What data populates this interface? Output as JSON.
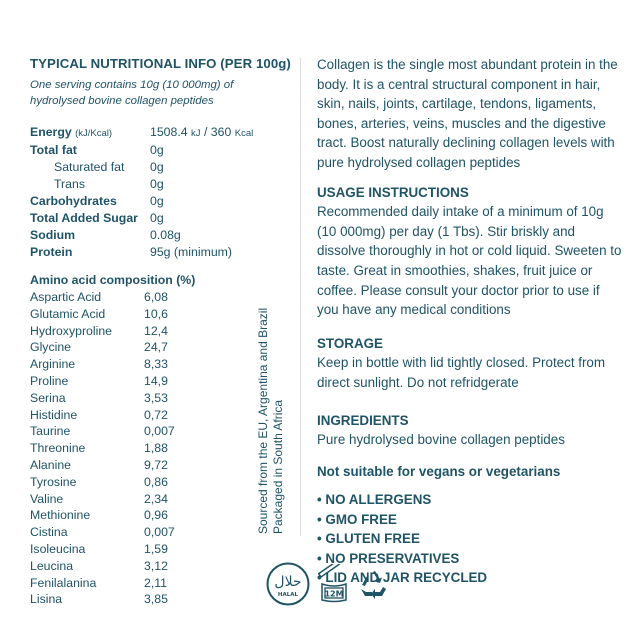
{
  "nutrition": {
    "title": "TYPICAL NUTRITIONAL INFO (PER 100g)",
    "subtitle_line1": "One serving contains 10g (10 000mg) of",
    "subtitle_line2": "hydrolysed bovine collagen peptides",
    "energy": {
      "label": "Energy",
      "unit": "(kJ/Kcal)",
      "kj": "1508.4",
      "kj_unit": "kJ",
      "sep": " / ",
      "kcal": "360",
      "kcal_unit": "Kcal"
    },
    "rows": [
      {
        "label": "Total fat",
        "value": "0g"
      },
      {
        "label": "Saturated fat",
        "value": "0g"
      },
      {
        "label": "Trans",
        "value": "0g"
      },
      {
        "label": "Carbohydrates",
        "value": "0g"
      },
      {
        "label": "Total Added Sugar",
        "value": "0g"
      },
      {
        "label": "Sodium",
        "value": "0.08g"
      },
      {
        "label": "Protein",
        "value": "95g (minimum)"
      }
    ]
  },
  "amino": {
    "title": "Amino acid composition (%)",
    "rows": [
      {
        "label": "Aspartic Acid",
        "value": "6,08"
      },
      {
        "label": "Glutamic Acid",
        "value": "10,6"
      },
      {
        "label": "Hydroxyproline",
        "value": "12,4"
      },
      {
        "label": "Glycine",
        "value": "24,7"
      },
      {
        "label": "Arginine",
        "value": "8,33"
      },
      {
        "label": "Proline",
        "value": "14,9"
      },
      {
        "label": "Serina",
        "value": "3,53"
      },
      {
        "label": "Histidine",
        "value": "0,72"
      },
      {
        "label": "Taurine",
        "value": "0,007"
      },
      {
        "label": "Threonine",
        "value": "1,88"
      },
      {
        "label": "Alanine",
        "value": "9,72"
      },
      {
        "label": "Tyrosine",
        "value": "0,86"
      },
      {
        "label": "Valine",
        "value": "2,34"
      },
      {
        "label": "Methionine",
        "value": "0,96"
      },
      {
        "label": "Cistina",
        "value": "0,007"
      },
      {
        "label": "Isoleucina",
        "value": "1,59"
      },
      {
        "label": "Leucina",
        "value": "3,12"
      },
      {
        "label": "Fenilalanina",
        "value": "2,11"
      },
      {
        "label": "Lisina",
        "value": "3,85"
      }
    ]
  },
  "origin": {
    "line1": "Sourced from the EU, Argentina and Brazil",
    "line2": "Packaged in South Africa"
  },
  "info": {
    "intro": "Collagen is the single most abundant protein in the body. It is a central structural component in hair, skin, nails, joints, cartilage, tendons, ligaments, bones, arteries, veins, muscles and the digestive tract. Boost naturally declining collagen levels with pure hydrolysed collagen peptides",
    "usage_title": "USAGE INSTRUCTIONS",
    "usage_text": "Recommended daily intake of a minimum of 10g (10 000mg) per day (1 Tbs). Stir briskly and dissolve thoroughly in hot or cold liquid. Sweeten to taste. Great in smoothies, shakes, fruit juice or coffee. Please consult your doctor prior to use if you have any medical conditions",
    "storage_title": "STORAGE",
    "storage_text": "Keep in bottle with lid tightly closed. Protect from direct sunlight. Do not refridgerate",
    "ingredients_title": "INGREDIENTS",
    "ingredients_text": "Pure hydrolysed bovine collagen peptides",
    "warning": "Not suitable for vegans or vegetarians",
    "bullets": [
      "• NO ALLERGENS",
      "• GMO FREE",
      "• GLUTEN FREE",
      "• NO PRESERVATIVES",
      "• LID AND JAR RECYCLED"
    ]
  },
  "icons": {
    "halal_text": "HALAL",
    "halal_arabic": "حلال",
    "pao_text": "12M",
    "names": [
      "halal-icon",
      "open-jar-12m-icon",
      "recycle-icon"
    ]
  },
  "colors": {
    "text": "#1f5366",
    "divider": "#dcdcdc"
  }
}
